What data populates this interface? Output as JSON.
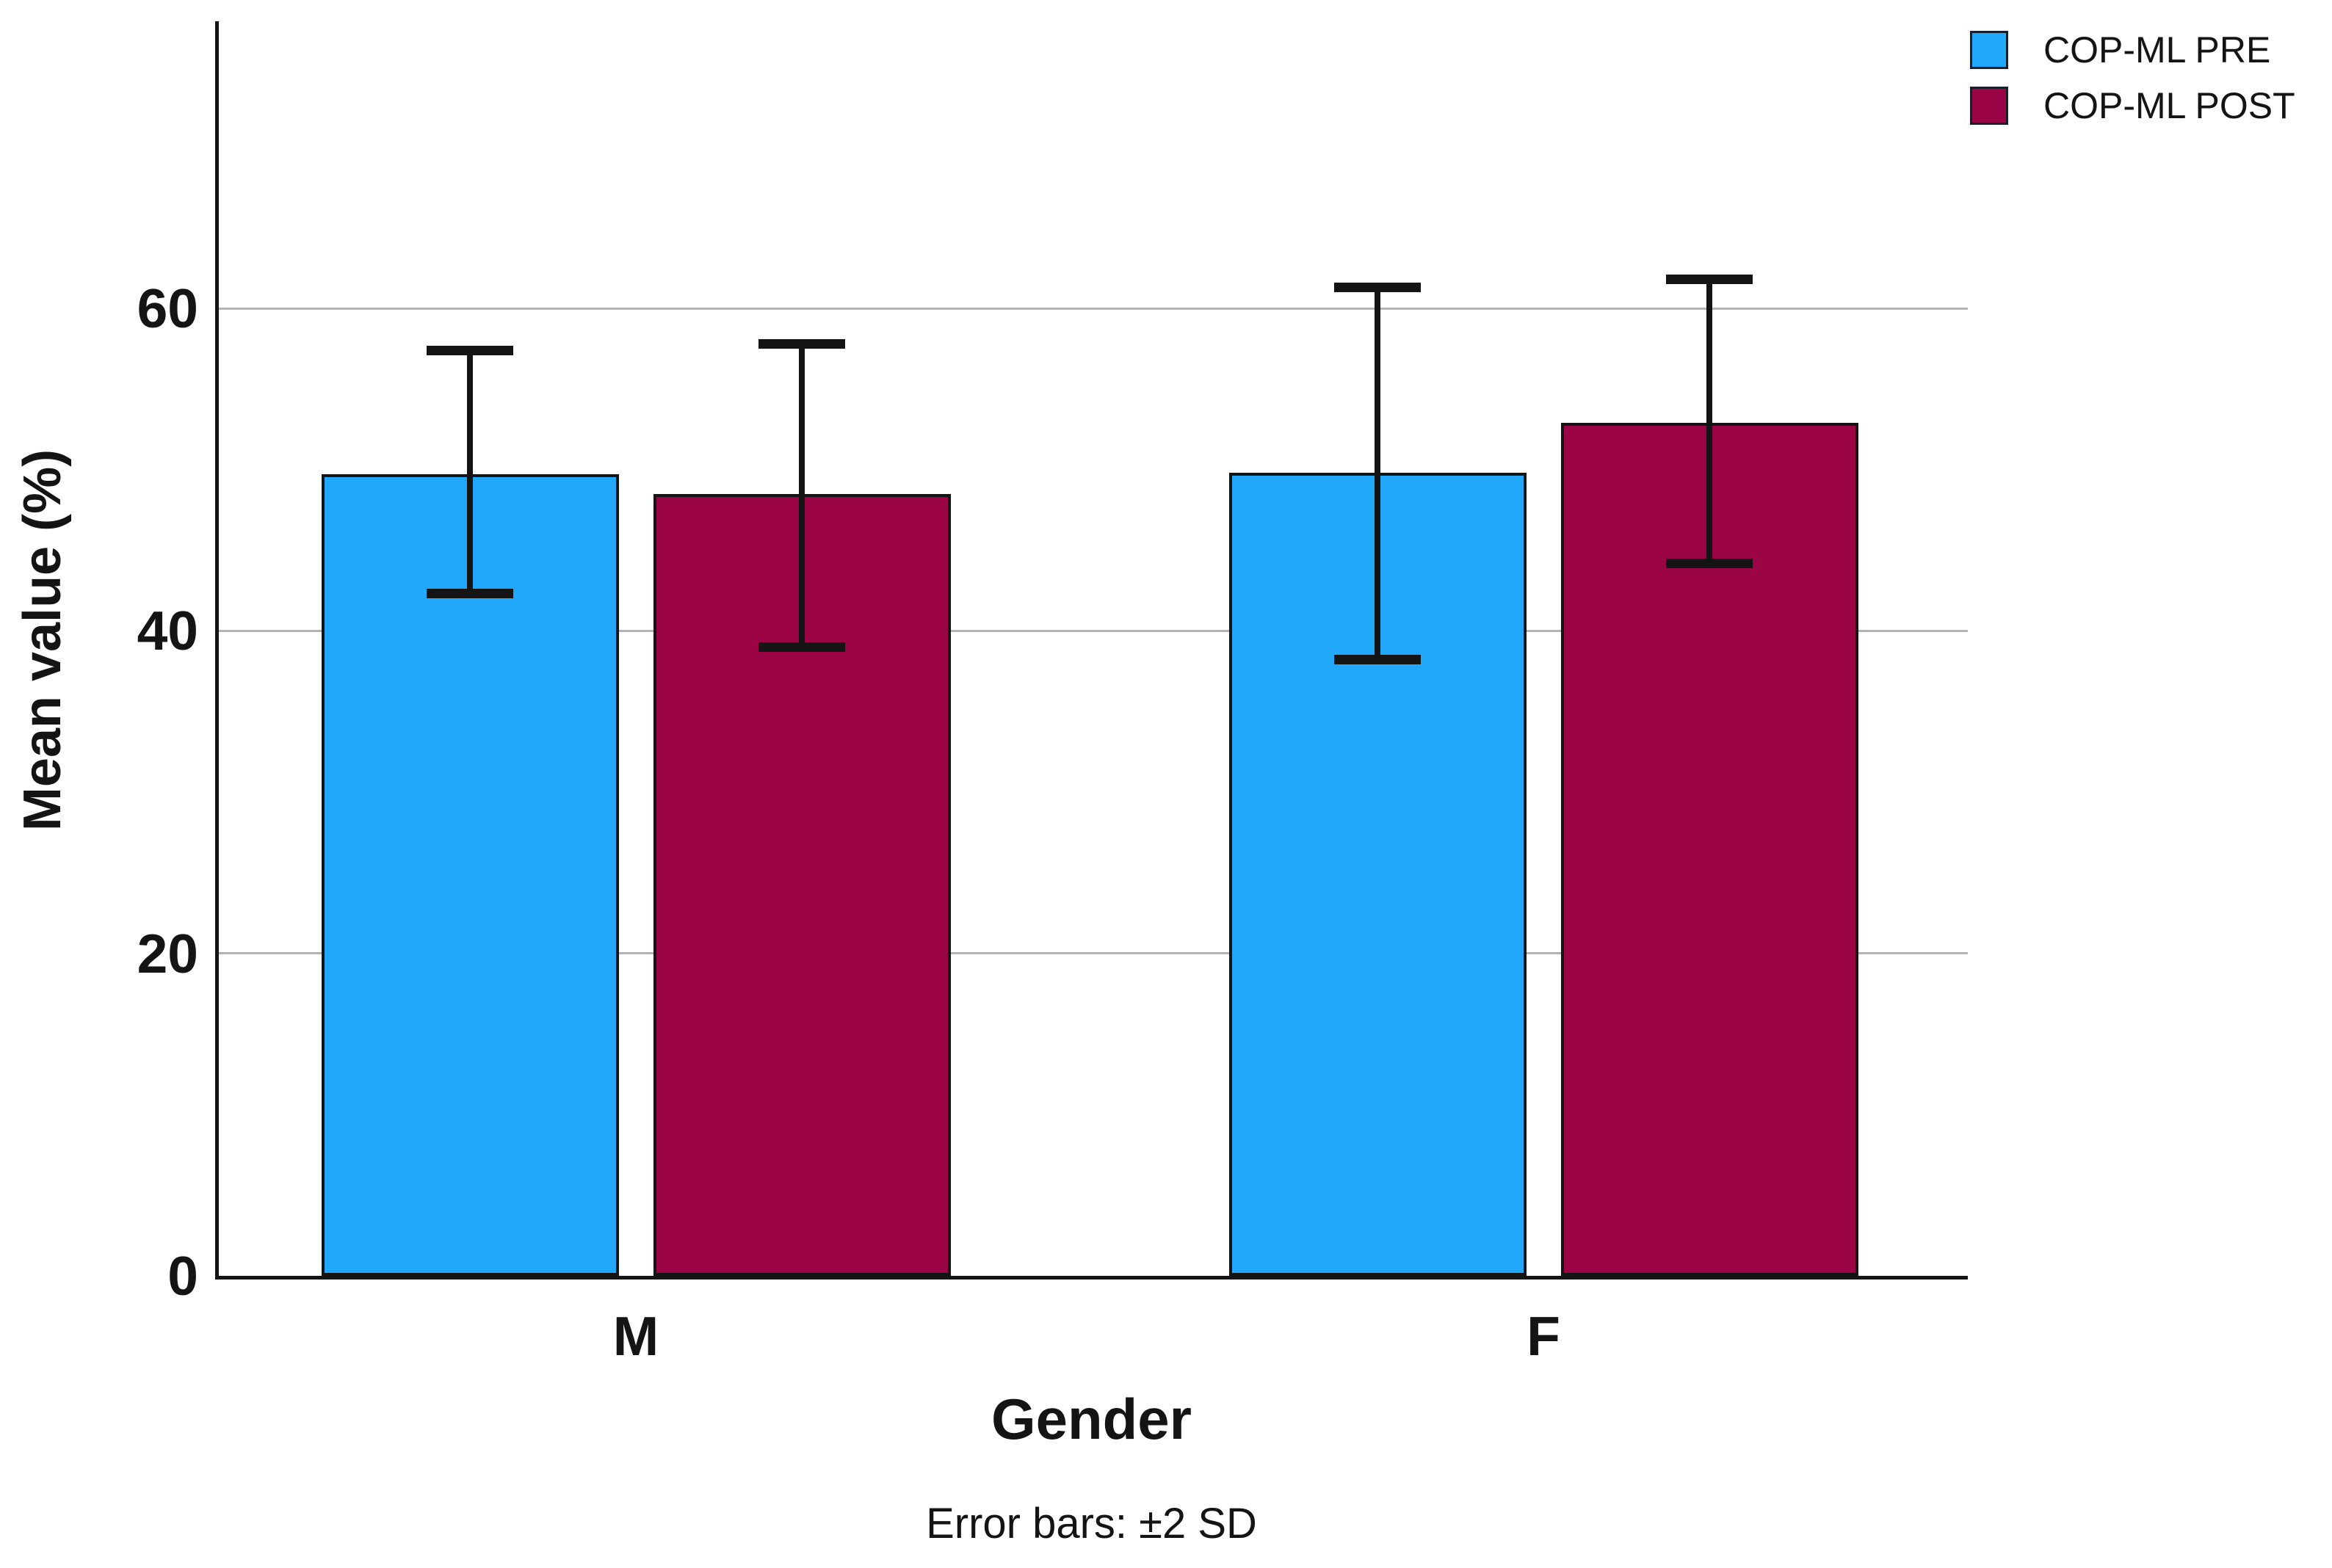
{
  "chart_data": {
    "type": "bar",
    "title": "",
    "categories": [
      "M",
      "F"
    ],
    "series": [
      {
        "name": "COP-ML PRE",
        "color": "#22A8FA",
        "values": [
          49.7,
          49.8
        ],
        "error_low": [
          42.3,
          38.2
        ],
        "error_high": [
          57.4,
          61.3
        ]
      },
      {
        "name": "COP-ML POST",
        "color": "#9B0545",
        "values": [
          48.5,
          52.9
        ],
        "error_low": [
          39.0,
          44.2
        ],
        "error_high": [
          57.8,
          61.8
        ]
      }
    ],
    "xlabel": "Gender",
    "ylabel": "Mean value (%)",
    "yticks": [
      0,
      20,
      40,
      60
    ],
    "ylim": [
      0,
      77.8
    ],
    "grid": "horizontal",
    "legend_position": "top-right",
    "caption": "Error bars: ±2 SD"
  }
}
